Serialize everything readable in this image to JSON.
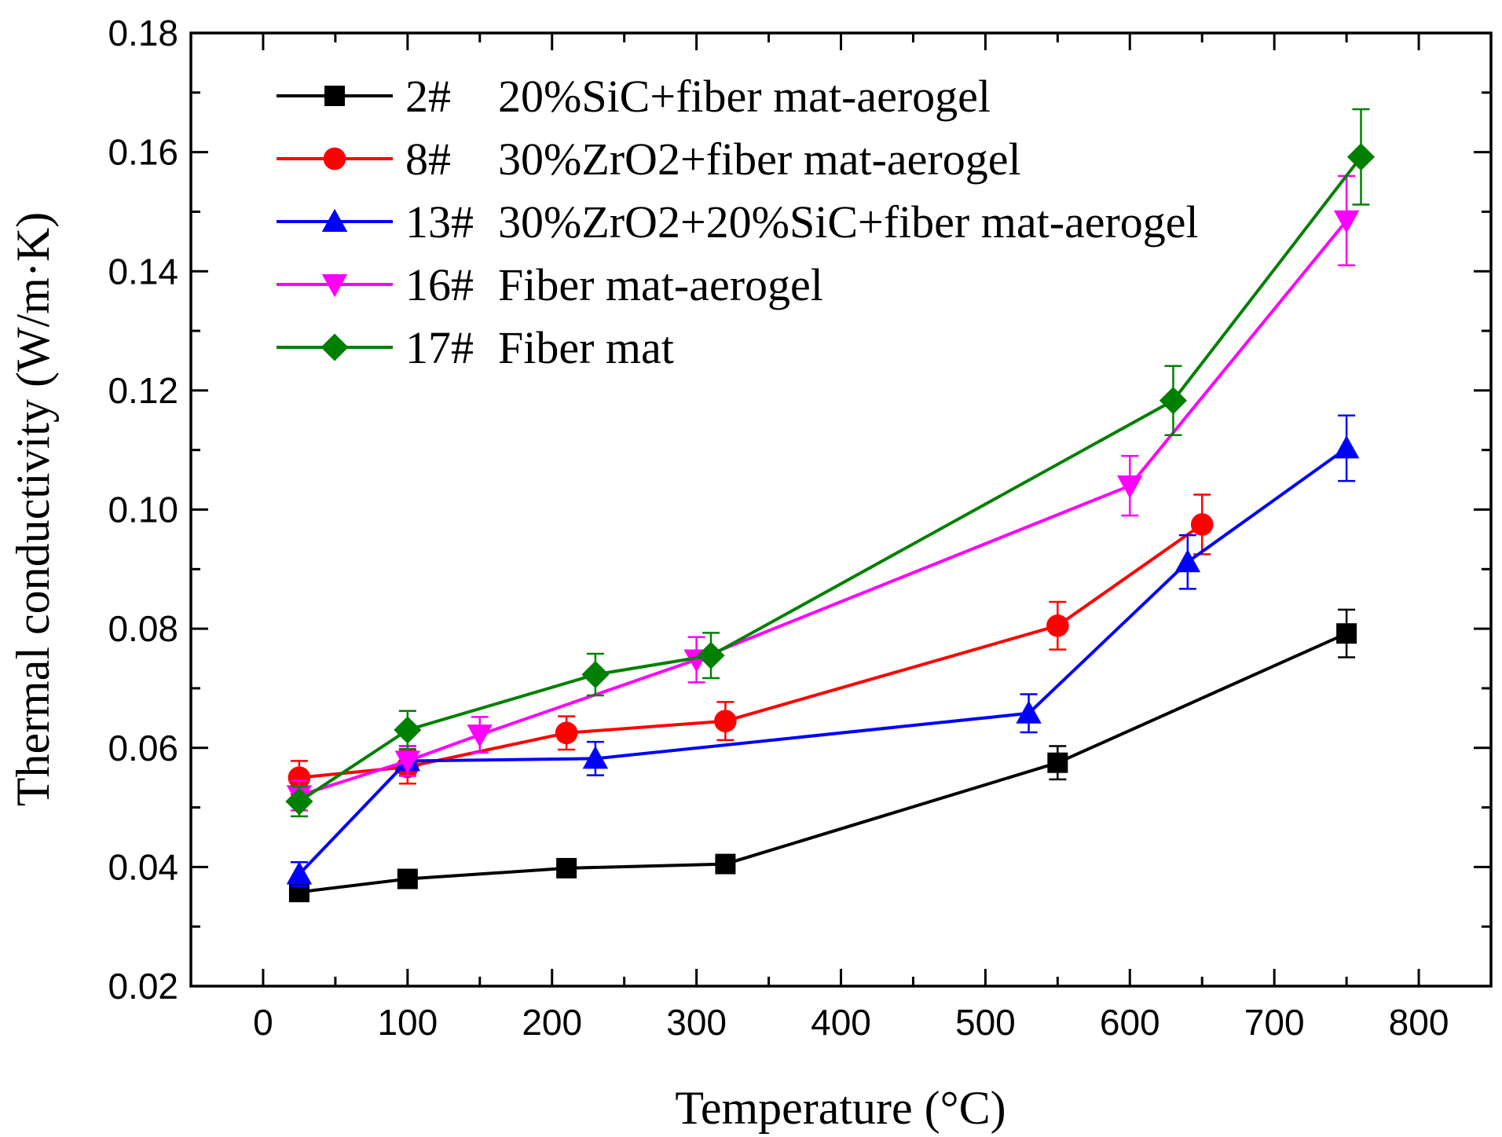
{
  "chart_data": {
    "type": "line",
    "title": "",
    "xlabel": "Temperature (°C)",
    "ylabel": "Thermal conductivity (W/m·K)",
    "xlim": [
      -50,
      850
    ],
    "ylim": [
      0.02,
      0.18
    ],
    "xticks": [
      0,
      100,
      200,
      300,
      400,
      500,
      600,
      700,
      800
    ],
    "yticks": [
      0.02,
      0.04,
      0.06,
      0.08,
      0.1,
      0.12,
      0.14,
      0.16,
      0.18
    ],
    "xtick_labels": [
      "0",
      "100",
      "200",
      "300",
      "400",
      "500",
      "600",
      "700",
      "800"
    ],
    "ytick_labels": [
      "0.02",
      "0.04",
      "0.06",
      "0.08",
      "0.10",
      "0.12",
      "0.14",
      "0.16",
      "0.18"
    ],
    "legend_position": "top-left",
    "series": [
      {
        "id": "s2",
        "code": "2#",
        "name": "20%SiC+fiber mat-aerogel",
        "color": "#000000",
        "marker": "square",
        "x": [
          25,
          100,
          210,
          320,
          550,
          750
        ],
        "y": [
          0.0358,
          0.038,
          0.0398,
          0.0405,
          0.0575,
          0.0792
        ],
        "err": [
          0.001,
          0.001,
          0.0012,
          0.0012,
          0.0028,
          0.004
        ]
      },
      {
        "id": "s8",
        "code": "8#",
        "name": "30%ZrO2+fiber mat-aerogel",
        "color": "#ff0000",
        "marker": "circle",
        "x": [
          25,
          100,
          210,
          320,
          550,
          650
        ],
        "y": [
          0.055,
          0.0568,
          0.0625,
          0.0645,
          0.0805,
          0.0975
        ],
        "err": [
          0.0028,
          0.0028,
          0.0028,
          0.0032,
          0.004,
          0.005
        ]
      },
      {
        "id": "s13",
        "code": "13#",
        "name": "30%ZrO2+20%SiC+fiber mat-aerogel",
        "color": "#0000ff",
        "marker": "triangle-up",
        "x": [
          25,
          100,
          230,
          530,
          640,
          750
        ],
        "y": [
          0.0388,
          0.0578,
          0.0582,
          0.0658,
          0.0912,
          0.1103
        ],
        "err": [
          0.002,
          0.0025,
          0.0028,
          0.0032,
          0.0045,
          0.0055
        ]
      },
      {
        "id": "s16",
        "code": "16#",
        "name": "Fiber mat-aerogel",
        "color": "#ff00ff",
        "marker": "triangle-down",
        "x": [
          25,
          100,
          150,
          300,
          600,
          750
        ],
        "y": [
          0.052,
          0.0578,
          0.0622,
          0.0748,
          0.104,
          0.1485
        ],
        "err": [
          0.0025,
          0.0025,
          0.003,
          0.0038,
          0.005,
          0.0075
        ]
      },
      {
        "id": "s17",
        "code": "17#",
        "name": "Fiber mat",
        "color": "#008000",
        "marker": "diamond",
        "x": [
          25,
          100,
          230,
          310,
          630,
          760
        ],
        "y": [
          0.051,
          0.063,
          0.0723,
          0.0755,
          0.1183,
          0.1592
        ],
        "err": [
          0.0025,
          0.0032,
          0.0035,
          0.0038,
          0.0058,
          0.008
        ]
      }
    ]
  }
}
